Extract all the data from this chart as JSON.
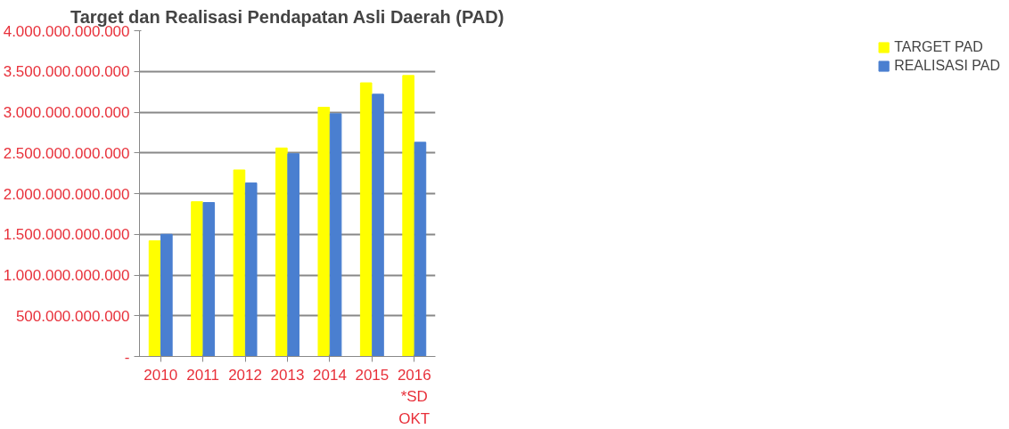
{
  "chart_data": {
    "type": "bar",
    "title": "Target dan Realisasi Pendapatan Asli Daerah (PAD)",
    "categories": [
      "2010",
      "2011",
      "2012",
      "2013",
      "2014",
      "2015",
      "2016\n*SD\nOKT"
    ],
    "series": [
      {
        "name": "TARGET PAD",
        "color": "#ffff00",
        "values": [
          1420000000000,
          1900000000000,
          2290000000000,
          2560000000000,
          3060000000000,
          3360000000000,
          3450000000000
        ]
      },
      {
        "name": "REALISASI PAD",
        "color": "#4a7fd0",
        "values": [
          1500000000000,
          1890000000000,
          2130000000000,
          2490000000000,
          2980000000000,
          3220000000000,
          2630000000000
        ]
      }
    ],
    "ylim": [
      0,
      4000000000000
    ],
    "yticks": [
      {
        "value": 0,
        "label": "-"
      },
      {
        "value": 500000000000,
        "label": "500.000.000.000"
      },
      {
        "value": 1000000000000,
        "label": "1.000.000.000.000"
      },
      {
        "value": 1500000000000,
        "label": "1.500.000.000.000"
      },
      {
        "value": 2000000000000,
        "label": "2.000.000.000.000"
      },
      {
        "value": 2500000000000,
        "label": "2.500.000.000.000"
      },
      {
        "value": 3000000000000,
        "label": "3.000.000.000.000"
      },
      {
        "value": 3500000000000,
        "label": "3.500.000.000.000"
      },
      {
        "value": 4000000000000,
        "label": "4.000.000.000.000"
      }
    ],
    "grid": "y",
    "legend": "right"
  }
}
